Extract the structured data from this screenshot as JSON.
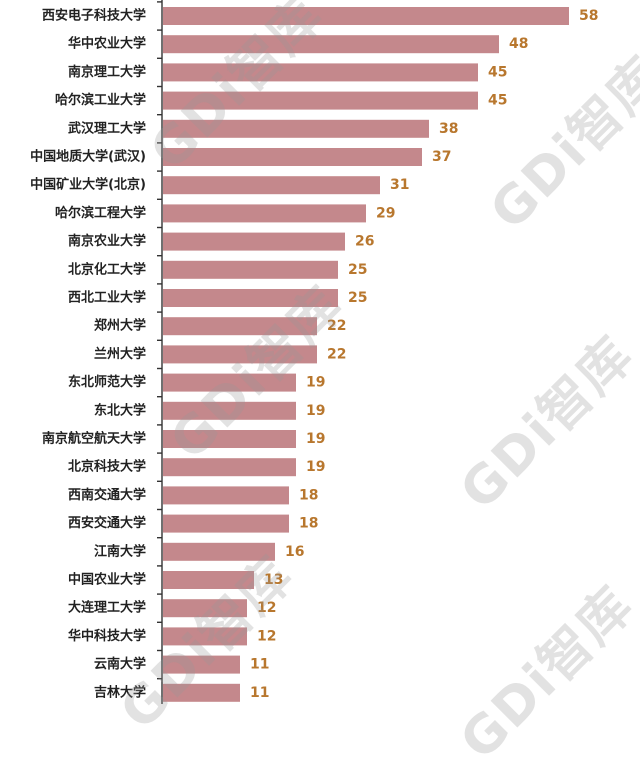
{
  "chart_data": {
    "type": "bar",
    "orientation": "horizontal",
    "categories": [
      "西安电子科技大学",
      "华中农业大学",
      "南京理工大学",
      "哈尔滨工业大学",
      "武汉理工大学",
      "中国地质大学(武汉)",
      "中国矿业大学(北京)",
      "哈尔滨工程大学",
      "南京农业大学",
      "北京化工大学",
      "西北工业大学",
      "郑州大学",
      "兰州大学",
      "东北师范大学",
      "东北大学",
      "南京航空航天大学",
      "北京科技大学",
      "西南交通大学",
      "西安交通大学",
      "江南大学",
      "中国农业大学",
      "大连理工大学",
      "华中科技大学",
      "云南大学",
      "吉林大学"
    ],
    "values": [
      58,
      48,
      45,
      45,
      38,
      37,
      31,
      29,
      26,
      25,
      25,
      22,
      22,
      19,
      19,
      19,
      19,
      18,
      18,
      16,
      13,
      12,
      12,
      11,
      11
    ],
    "xlim": [
      0,
      58
    ],
    "title": "",
    "xlabel": "",
    "ylabel": "",
    "grid": false,
    "colors": {
      "bar": "#c4888c",
      "value_label": "#b8772e"
    }
  },
  "watermark": {
    "text": "GDi智库"
  }
}
